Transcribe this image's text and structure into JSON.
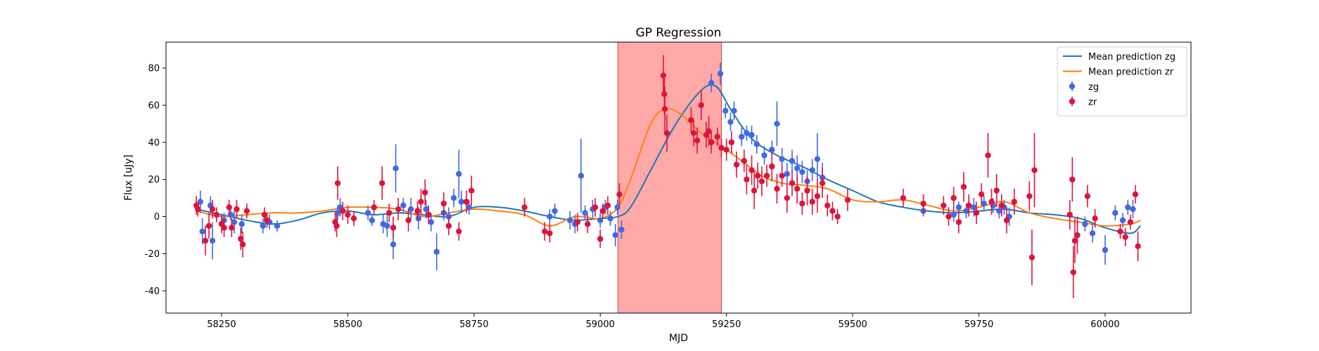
{
  "chart_data": {
    "type": "scatter",
    "title": "GP Regression",
    "xlabel": "MJD",
    "ylabel": "Flux [uJy]",
    "xlim": [
      58140,
      60170
    ],
    "ylim": [
      -52,
      94
    ],
    "xticks": [
      58250,
      58500,
      58750,
      59000,
      59250,
      59500,
      59750,
      60000
    ],
    "yticks": [
      -40,
      -20,
      0,
      20,
      40,
      60,
      80
    ],
    "grid": false,
    "legend_position": "top-right",
    "shaded_region": {
      "x0": 59035,
      "x1": 59240,
      "color": "#ff9999"
    },
    "legend": [
      {
        "label": "Mean prediction zg",
        "kind": "line",
        "color": "#1f77b4"
      },
      {
        "label": "Mean prediction zr",
        "kind": "line",
        "color": "#ff7f0e"
      },
      {
        "label": "zg",
        "kind": "errorbar",
        "color": "#4169e1"
      },
      {
        "label": "zr",
        "kind": "errorbar",
        "color": "#dc143c"
      }
    ],
    "series": [
      {
        "name": "Mean prediction zg",
        "kind": "line",
        "color": "#1f77b4",
        "x": [
          58200,
          58250,
          58300,
          58350,
          58400,
          58450,
          58500,
          58550,
          58600,
          58650,
          58700,
          58750,
          58800,
          58850,
          58900,
          58950,
          59000,
          59035,
          59060,
          59100,
          59150,
          59200,
          59230,
          59260,
          59300,
          59350,
          59400,
          59450,
          59500,
          59550,
          59600,
          59650,
          59700,
          59750,
          59800,
          59850,
          59900,
          59950,
          60000,
          60050,
          60070
        ],
        "y": [
          4,
          1,
          -2,
          -4,
          -2,
          2,
          3,
          1,
          2,
          1,
          0,
          5,
          5,
          3,
          0,
          -2,
          -1,
          0,
          5,
          25,
          50,
          68,
          70,
          57,
          42,
          33,
          27,
          20,
          14,
          8,
          5,
          3,
          2,
          3,
          4,
          2,
          1,
          -1,
          -6,
          -9,
          -5
        ]
      },
      {
        "name": "Mean prediction zr",
        "kind": "line",
        "color": "#ff7f0e",
        "x": [
          58200,
          58250,
          58300,
          58350,
          58400,
          58450,
          58500,
          58550,
          58600,
          58650,
          58700,
          58750,
          58800,
          58850,
          58900,
          58950,
          59000,
          59035,
          59060,
          59100,
          59130,
          59160,
          59200,
          59240,
          59280,
          59320,
          59360,
          59400,
          59450,
          59500,
          59550,
          59600,
          59650,
          59700,
          59750,
          59800,
          59850,
          59900,
          59950,
          60000,
          60050,
          60070
        ],
        "y": [
          3,
          0,
          1,
          2,
          2,
          3,
          5,
          5,
          4,
          0,
          2,
          4,
          3,
          1,
          -5,
          0,
          -1,
          5,
          20,
          50,
          58,
          55,
          45,
          38,
          30,
          22,
          18,
          17,
          15,
          9,
          8,
          9,
          6,
          3,
          5,
          8,
          2,
          -1,
          -3,
          -5,
          -4,
          -2
        ]
      },
      {
        "name": "zg",
        "kind": "errorbar",
        "color": "#4169e1",
        "points": [
          [
            58208,
            8,
            6
          ],
          [
            58212,
            -8,
            7
          ],
          [
            58228,
            6,
            5
          ],
          [
            58232,
            -13,
            10
          ],
          [
            58255,
            -2,
            4
          ],
          [
            58268,
            1,
            3
          ],
          [
            58275,
            -3,
            6
          ],
          [
            58290,
            -4,
            5
          ],
          [
            58332,
            -5,
            4
          ],
          [
            58345,
            -3,
            4
          ],
          [
            58360,
            -5,
            3
          ],
          [
            58480,
            2,
            4
          ],
          [
            58485,
            5,
            5
          ],
          [
            58540,
            2,
            4
          ],
          [
            58548,
            -2,
            3
          ],
          [
            58570,
            -4,
            5
          ],
          [
            58578,
            -5,
            6
          ],
          [
            58590,
            -15,
            8
          ],
          [
            58595,
            26,
            13
          ],
          [
            58610,
            6,
            4
          ],
          [
            58625,
            4,
            6
          ],
          [
            58640,
            -1,
            6
          ],
          [
            58655,
            4,
            5
          ],
          [
            58665,
            -3,
            5
          ],
          [
            58676,
            -19,
            10
          ],
          [
            58690,
            2,
            4
          ],
          [
            58700,
            0,
            5
          ],
          [
            58710,
            10,
            5
          ],
          [
            58720,
            23,
            13
          ],
          [
            58725,
            8,
            6
          ],
          [
            58740,
            5,
            4
          ],
          [
            58900,
            0,
            4
          ],
          [
            58910,
            3,
            4
          ],
          [
            58940,
            -2,
            5
          ],
          [
            58950,
            -4,
            5
          ],
          [
            58962,
            22,
            20
          ],
          [
            58970,
            2,
            4
          ],
          [
            58985,
            4,
            5
          ],
          [
            59000,
            -2,
            4
          ],
          [
            59010,
            5,
            4
          ],
          [
            59020,
            -1,
            4
          ],
          [
            59030,
            -10,
            6
          ],
          [
            59034,
            5,
            4
          ],
          [
            59042,
            -7,
            5
          ],
          [
            59220,
            72,
            5
          ],
          [
            59238,
            77,
            6
          ],
          [
            59248,
            57,
            4
          ],
          [
            59258,
            51,
            5
          ],
          [
            59265,
            57,
            5
          ],
          [
            59280,
            43,
            5
          ],
          [
            59290,
            45,
            4
          ],
          [
            59300,
            44,
            5
          ],
          [
            59310,
            39,
            5
          ],
          [
            59325,
            33,
            5
          ],
          [
            59340,
            36,
            5
          ],
          [
            59350,
            50,
            12
          ],
          [
            59360,
            31,
            6
          ],
          [
            59370,
            23,
            6
          ],
          [
            59380,
            30,
            6
          ],
          [
            59390,
            26,
            7
          ],
          [
            59400,
            24,
            6
          ],
          [
            59410,
            19,
            6
          ],
          [
            59420,
            25,
            6
          ],
          [
            59430,
            31,
            14
          ],
          [
            59440,
            21,
            8
          ],
          [
            59640,
            3,
            3
          ],
          [
            59700,
            1,
            4
          ],
          [
            59710,
            5,
            3
          ],
          [
            59725,
            3,
            4
          ],
          [
            59740,
            5,
            5
          ],
          [
            59760,
            7,
            4
          ],
          [
            59778,
            6,
            4
          ],
          [
            59790,
            3,
            4
          ],
          [
            59800,
            5,
            4
          ],
          [
            59810,
            0,
            5
          ],
          [
            59960,
            -4,
            4
          ],
          [
            59975,
            -9,
            5
          ],
          [
            60000,
            -18,
            8
          ],
          [
            60020,
            2,
            4
          ],
          [
            60035,
            -2,
            4
          ],
          [
            60045,
            5,
            4
          ],
          [
            60055,
            4,
            5
          ]
        ]
      },
      {
        "name": "zr",
        "kind": "errorbar",
        "color": "#dc143c",
        "points": [
          [
            58200,
            6,
            5
          ],
          [
            58203,
            4,
            4
          ],
          [
            58218,
            -13,
            8
          ],
          [
            58225,
            -5,
            7
          ],
          [
            58232,
            4,
            5
          ],
          [
            58240,
            1,
            4
          ],
          [
            58250,
            -4,
            5
          ],
          [
            58255,
            -6,
            5
          ],
          [
            58265,
            5,
            4
          ],
          [
            58270,
            -6,
            5
          ],
          [
            58280,
            4,
            5
          ],
          [
            58288,
            -12,
            6
          ],
          [
            58292,
            -15,
            7
          ],
          [
            58300,
            3,
            4
          ],
          [
            58335,
            1,
            4
          ],
          [
            58340,
            -2,
            4
          ],
          [
            58475,
            -3,
            5
          ],
          [
            58478,
            -5,
            6
          ],
          [
            58480,
            18,
            9
          ],
          [
            58490,
            3,
            5
          ],
          [
            58500,
            1,
            5
          ],
          [
            58512,
            -1,
            4
          ],
          [
            58552,
            5,
            4
          ],
          [
            58568,
            18,
            9
          ],
          [
            58582,
            2,
            5
          ],
          [
            58590,
            -6,
            6
          ],
          [
            58600,
            4,
            6
          ],
          [
            58620,
            -2,
            6
          ],
          [
            58638,
            3,
            5
          ],
          [
            58645,
            8,
            7
          ],
          [
            58653,
            13,
            7
          ],
          [
            58660,
            1,
            5
          ],
          [
            58690,
            7,
            6
          ],
          [
            58700,
            -5,
            5
          ],
          [
            58720,
            -8,
            5
          ],
          [
            58735,
            8,
            6
          ],
          [
            58745,
            14,
            8
          ],
          [
            58850,
            5,
            5
          ],
          [
            58890,
            -8,
            5
          ],
          [
            58900,
            -9,
            5
          ],
          [
            58955,
            -3,
            5
          ],
          [
            58975,
            -4,
            5
          ],
          [
            58990,
            5,
            5
          ],
          [
            59000,
            -12,
            5
          ],
          [
            59005,
            3,
            4
          ],
          [
            59015,
            6,
            5
          ],
          [
            59038,
            12,
            6
          ],
          [
            59125,
            76,
            11
          ],
          [
            59127,
            66,
            11
          ],
          [
            59128,
            58,
            12
          ],
          [
            59132,
            45,
            10
          ],
          [
            59180,
            52,
            7
          ],
          [
            59185,
            45,
            7
          ],
          [
            59192,
            41,
            7
          ],
          [
            59200,
            60,
            8
          ],
          [
            59210,
            44,
            7
          ],
          [
            59215,
            46,
            8
          ],
          [
            59220,
            40,
            6
          ],
          [
            59232,
            43,
            5
          ],
          [
            59240,
            37,
            5
          ],
          [
            59250,
            36,
            6
          ],
          [
            59260,
            40,
            6
          ],
          [
            59270,
            28,
            7
          ],
          [
            59285,
            30,
            6
          ],
          [
            59290,
            20,
            8
          ],
          [
            59300,
            25,
            8
          ],
          [
            59305,
            14,
            10
          ],
          [
            59312,
            22,
            7
          ],
          [
            59320,
            19,
            8
          ],
          [
            59330,
            22,
            6
          ],
          [
            59340,
            27,
            8
          ],
          [
            59350,
            15,
            8
          ],
          [
            59360,
            22,
            6
          ],
          [
            59370,
            10,
            8
          ],
          [
            59380,
            18,
            7
          ],
          [
            59390,
            15,
            8
          ],
          [
            59400,
            7,
            6
          ],
          [
            59410,
            14,
            8
          ],
          [
            59420,
            8,
            7
          ],
          [
            59430,
            11,
            9
          ],
          [
            59440,
            18,
            8
          ],
          [
            59450,
            6,
            6
          ],
          [
            59460,
            3,
            5
          ],
          [
            59470,
            0,
            4
          ],
          [
            59490,
            9,
            6
          ],
          [
            59600,
            10,
            5
          ],
          [
            59640,
            7,
            5
          ],
          [
            59680,
            6,
            5
          ],
          [
            59690,
            0,
            5
          ],
          [
            59700,
            10,
            6
          ],
          [
            59710,
            -3,
            6
          ],
          [
            59720,
            16,
            8
          ],
          [
            59730,
            6,
            6
          ],
          [
            59745,
            2,
            6
          ],
          [
            59755,
            12,
            6
          ],
          [
            59768,
            33,
            12
          ],
          [
            59775,
            8,
            7
          ],
          [
            59785,
            14,
            9
          ],
          [
            59795,
            6,
            6
          ],
          [
            59805,
            -2,
            7
          ],
          [
            59820,
            8,
            7
          ],
          [
            59850,
            11,
            8
          ],
          [
            59855,
            -22,
            15
          ],
          [
            59860,
            25,
            20
          ],
          [
            59930,
            1,
            8
          ],
          [
            59935,
            20,
            12
          ],
          [
            59937,
            -30,
            14
          ],
          [
            59940,
            -13,
            12
          ],
          [
            59945,
            -10,
            10
          ],
          [
            59965,
            11,
            6
          ],
          [
            59980,
            -1,
            5
          ],
          [
            60030,
            -8,
            4
          ],
          [
            60040,
            -11,
            5
          ],
          [
            60050,
            -3,
            4
          ],
          [
            60060,
            12,
            5
          ],
          [
            60065,
            -16,
            8
          ]
        ]
      }
    ]
  }
}
